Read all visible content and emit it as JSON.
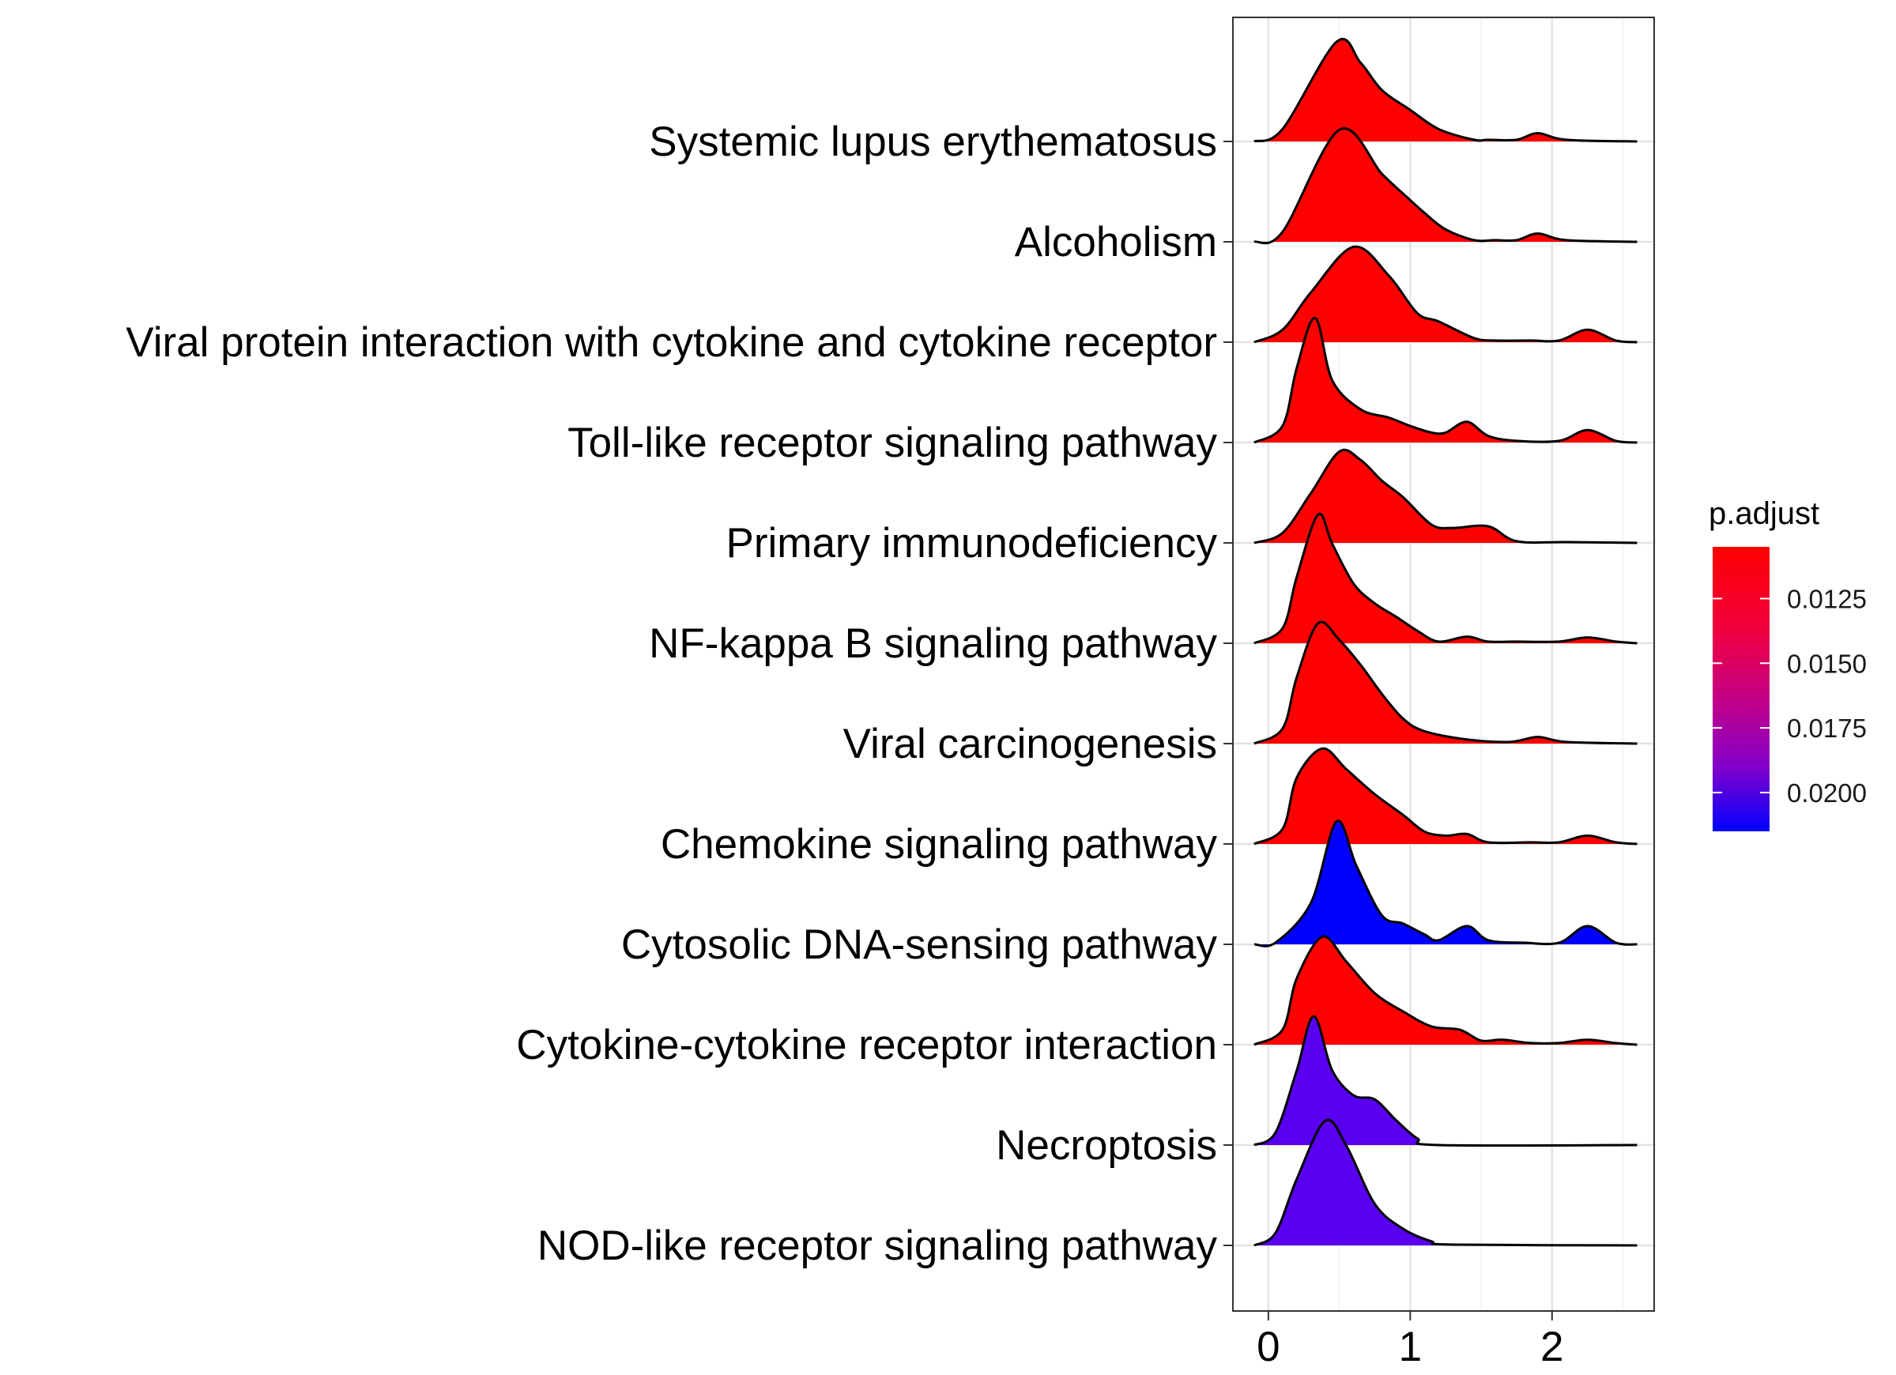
{
  "chart_data": {
    "type": "ridgeline",
    "xlim": [
      -0.25,
      2.72
    ],
    "x_ticks": [
      0,
      1,
      2
    ],
    "x_tick_labels": [
      "0",
      "1",
      "2"
    ],
    "xlabel": "",
    "ylabel": "",
    "title": "",
    "grid": true,
    "legend": {
      "title": "p.adjust",
      "position": "right",
      "scale": "continuous",
      "range": [
        0.0105,
        0.0215
      ],
      "ticks": [
        0.0125,
        0.015,
        0.0175,
        0.02
      ],
      "tick_labels": [
        "0.0125",
        "0.0150",
        "0.0175",
        "0.0200"
      ],
      "low_color": "#ff0000",
      "high_color": "#0000ff"
    },
    "series": [
      {
        "name": "Systemic lupus erythematosus",
        "p_adjust": 0.0105,
        "color": "#ff0000",
        "x": [
          -0.1,
          0.1,
          0.48,
          0.65,
          0.8,
          1.0,
          1.2,
          1.45,
          1.55,
          1.75,
          1.9,
          2.1,
          2.6
        ],
        "density": [
          0,
          0.15,
          1.2,
          0.95,
          0.62,
          0.38,
          0.15,
          0.02,
          0.02,
          0.02,
          0.1,
          0.02,
          0
        ]
      },
      {
        "name": "Alcoholism",
        "p_adjust": 0.0105,
        "color": "#ff0000",
        "x": [
          -0.1,
          0.1,
          0.5,
          0.8,
          0.95,
          1.1,
          1.25,
          1.45,
          1.6,
          1.75,
          1.9,
          2.1,
          2.6
        ],
        "density": [
          0,
          0.12,
          1.35,
          0.82,
          0.58,
          0.35,
          0.15,
          0.02,
          0.02,
          0.02,
          0.1,
          0.02,
          0
        ]
      },
      {
        "name": "Viral protein interaction with cytokine and cytokine receptor",
        "p_adjust": 0.0105,
        "color": "#ff0000",
        "x": [
          -0.1,
          0.1,
          0.3,
          0.6,
          0.85,
          1.05,
          1.2,
          1.45,
          1.6,
          1.85,
          2.05,
          2.25,
          2.45,
          2.6
        ],
        "density": [
          0,
          0.15,
          0.6,
          1.15,
          0.8,
          0.35,
          0.25,
          0.05,
          0.02,
          0.02,
          0.02,
          0.15,
          0.02,
          0
        ]
      },
      {
        "name": "Toll-like receptor signaling pathway",
        "p_adjust": 0.0105,
        "color": "#ff0000",
        "x": [
          -0.1,
          0.1,
          0.2,
          0.33,
          0.45,
          0.65,
          0.85,
          1.0,
          1.15,
          1.25,
          1.4,
          1.55,
          1.75,
          2.05,
          2.25,
          2.45,
          2.6
        ],
        "density": [
          0,
          0.2,
          0.9,
          1.5,
          0.75,
          0.4,
          0.3,
          0.2,
          0.12,
          0.12,
          0.25,
          0.08,
          0.02,
          0.02,
          0.15,
          0.02,
          0
        ]
      },
      {
        "name": "Primary immunodeficiency",
        "p_adjust": 0.0105,
        "color": "#ff0000",
        "x": [
          -0.1,
          0.1,
          0.3,
          0.5,
          0.65,
          0.8,
          0.95,
          1.15,
          1.3,
          1.55,
          1.75,
          2.1,
          2.6
        ],
        "density": [
          0,
          0.12,
          0.6,
          1.1,
          1.0,
          0.75,
          0.55,
          0.22,
          0.18,
          0.2,
          0.02,
          0.01,
          0
        ]
      },
      {
        "name": "NF-kappa B signaling pathway",
        "p_adjust": 0.0105,
        "color": "#ff0000",
        "x": [
          -0.1,
          0.1,
          0.2,
          0.35,
          0.45,
          0.6,
          0.75,
          0.9,
          1.05,
          1.2,
          1.4,
          1.55,
          1.75,
          2.05,
          2.25,
          2.45,
          2.6
        ],
        "density": [
          0,
          0.18,
          0.8,
          1.55,
          1.2,
          0.72,
          0.48,
          0.32,
          0.15,
          0.02,
          0.08,
          0.02,
          0.02,
          0.02,
          0.07,
          0.02,
          0
        ]
      },
      {
        "name": "Viral carcinogenesis",
        "p_adjust": 0.0105,
        "color": "#ff0000",
        "x": [
          -0.1,
          0.1,
          0.2,
          0.35,
          0.5,
          0.65,
          0.8,
          0.95,
          1.1,
          1.4,
          1.7,
          1.9,
          2.1,
          2.6
        ],
        "density": [
          0,
          0.18,
          0.8,
          1.45,
          1.25,
          0.95,
          0.6,
          0.3,
          0.15,
          0.05,
          0.02,
          0.08,
          0.02,
          0
        ]
      },
      {
        "name": "Chemokine signaling pathway",
        "p_adjust": 0.0105,
        "color": "#ff0000",
        "x": [
          -0.1,
          0.1,
          0.2,
          0.38,
          0.55,
          0.75,
          0.95,
          1.1,
          1.25,
          1.4,
          1.55,
          1.85,
          2.05,
          2.25,
          2.45,
          2.6
        ],
        "density": [
          0,
          0.18,
          0.8,
          1.15,
          0.9,
          0.6,
          0.35,
          0.15,
          0.1,
          0.12,
          0.02,
          0.02,
          0.02,
          0.1,
          0.02,
          0
        ]
      },
      {
        "name": "Cytosolic DNA-sensing pathway",
        "p_adjust": 0.021,
        "color": "#0000ff",
        "x": [
          -0.1,
          0.05,
          0.3,
          0.48,
          0.62,
          0.8,
          0.95,
          1.1,
          1.2,
          1.4,
          1.55,
          1.8,
          2.05,
          2.25,
          2.45,
          2.6
        ],
        "density": [
          0,
          0.02,
          0.5,
          1.48,
          0.95,
          0.35,
          0.25,
          0.12,
          0.05,
          0.22,
          0.05,
          0.02,
          0.02,
          0.22,
          0.02,
          0
        ]
      },
      {
        "name": "Cytokine-cytokine receptor interaction",
        "p_adjust": 0.0105,
        "color": "#ff0000",
        "x": [
          -0.1,
          0.1,
          0.2,
          0.38,
          0.55,
          0.75,
          0.95,
          1.15,
          1.35,
          1.5,
          1.65,
          1.85,
          2.05,
          2.25,
          2.45,
          2.6
        ],
        "density": [
          0,
          0.18,
          0.8,
          1.3,
          1.0,
          0.62,
          0.4,
          0.22,
          0.18,
          0.05,
          0.06,
          0.02,
          0.02,
          0.06,
          0.02,
          0
        ]
      },
      {
        "name": "Necroptosis",
        "p_adjust": 0.0195,
        "color": "#5a00f0",
        "x": [
          -0.1,
          0.05,
          0.2,
          0.32,
          0.45,
          0.6,
          0.75,
          0.9,
          1.05,
          1.2,
          2.6
        ],
        "density": [
          0,
          0.15,
          0.9,
          1.55,
          0.9,
          0.6,
          0.55,
          0.3,
          0.08,
          0.0,
          0
        ]
      },
      {
        "name": "NOD-like receptor signaling pathway",
        "p_adjust": 0.0195,
        "color": "#5a00f0",
        "x": [
          -0.1,
          0.05,
          0.2,
          0.4,
          0.55,
          0.75,
          0.95,
          1.15,
          1.3,
          2.6
        ],
        "density": [
          0,
          0.15,
          0.8,
          1.5,
          1.2,
          0.5,
          0.2,
          0.05,
          0.01,
          0
        ]
      }
    ]
  }
}
